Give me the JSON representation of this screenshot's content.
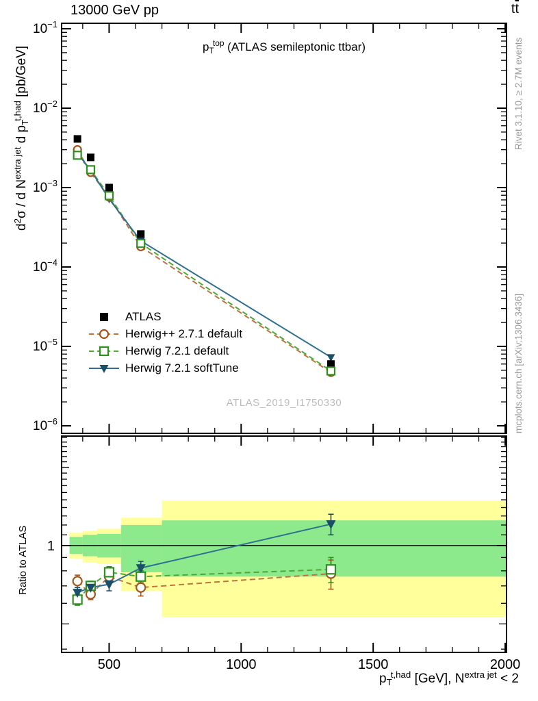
{
  "header": {
    "title_left": "13000 GeV pp",
    "title_right_parts": [
      {
        "t": "t"
      },
      {
        "t": "t",
        "s": "ov"
      }
    ]
  },
  "side_notes": {
    "rivet": "Rivet 3.1.10, ≥ 2.7M events",
    "mcplots": "mcplots.cern.ch [arXiv:1306.3436]"
  },
  "watermark": "ATLAS_2019_I1750330",
  "annotation_parts": [
    {
      "t": "p"
    },
    {
      "t": "T",
      "s": "sub"
    },
    {
      "t": "top",
      "s": "sup"
    },
    {
      "t": " (ATLAS semileptonic ttbar)"
    }
  ],
  "axis_labels": {
    "x_parts": [
      {
        "t": "p"
      },
      {
        "t": "T",
        "s": "sub"
      },
      {
        "t": "t,had",
        "s": "sup"
      },
      {
        "t": " [GeV], N"
      },
      {
        "t": "extra jet",
        "s": "sup"
      },
      {
        "t": " < 2"
      }
    ],
    "y_main_parts": [
      {
        "t": "d"
      },
      {
        "t": "2",
        "s": "sup"
      },
      {
        "t": "σ / d N"
      },
      {
        "t": "extra jet",
        "s": "sup"
      },
      {
        "t": " d p"
      },
      {
        "t": "T",
        "s": "sub"
      },
      {
        "t": "t,had",
        "s": "sup"
      },
      {
        "t": " [pb/GeV]"
      }
    ],
    "y_ratio": "Ratio to ATLAS"
  },
  "chart_data": {
    "type": "line",
    "title": "p_T^top (ATLAS semileptonic ttbar)",
    "xlabel": "p_T^{t,had} [GeV], N^{extra jet} < 2",
    "ylabel": "d^2(sigma) / d N^{extra jet} d p_T^{t,had} [pb/GeV]",
    "ylabel_ratio": "Ratio to ATLAS",
    "x_range": [
      320,
      2005
    ],
    "x_ticks": [
      500,
      1000,
      1500,
      2000
    ],
    "x_minor_step": 100,
    "y_main_scale": "log",
    "y_main_decades": [
      -1,
      -2,
      -3,
      -4,
      -5,
      -6
    ],
    "y_main_range": [
      7.9e-07,
      0.117
    ],
    "y_ratio_scale": "log",
    "y_ratio_range": [
      0.389,
      2.63
    ],
    "y_ratio_tick_label": "1",
    "ratio_reference": 1,
    "x": [
      380,
      430,
      500,
      620,
      1340
    ],
    "series": [
      {
        "name": "ATLAS",
        "role": "data",
        "marker": "square-filled",
        "line": "none",
        "marker_color": "#000000",
        "line_color": "#000000",
        "y": [
          0.0041,
          0.0024,
          0.001,
          0.00026,
          6e-06
        ]
      },
      {
        "name": "Herwig++ 2.7.1 default",
        "role": "mc",
        "marker": "circle-open",
        "line": "dashed",
        "marker_color": "#a4551c",
        "line_color": "#bd7440",
        "y": [
          0.003,
          0.00155,
          0.00076,
          0.00018,
          4.7e-06
        ],
        "ratio": [
          0.73,
          0.65,
          0.76,
          0.69,
          0.78
        ],
        "ratio_err": [
          0.04,
          0.03,
          0.04,
          0.05,
          0.1
        ]
      },
      {
        "name": "Herwig 7.2.1 default",
        "role": "mc",
        "marker": "square-open",
        "line": "dashed",
        "marker_color": "#2f8f1f",
        "line_color": "#4ea832",
        "y": [
          0.00255,
          0.00168,
          0.00079,
          0.000198,
          4.9e-06
        ],
        "ratio": [
          0.62,
          0.7,
          0.79,
          0.76,
          0.81
        ],
        "ratio_err": [
          0.03,
          0.03,
          0.04,
          0.04,
          0.09
        ]
      },
      {
        "name": "Herwig 7.2.1 softTune",
        "role": "mc",
        "marker": "triangle-down-filled",
        "line": "solid",
        "marker_color": "#1b4e67",
        "line_color": "#2e7092",
        "y": [
          0.0027,
          0.00166,
          0.00072,
          0.000213,
          7.3e-06
        ],
        "ratio": [
          0.66,
          0.69,
          0.71,
          0.82,
          1.21
        ],
        "ratio_err": [
          0.03,
          0.03,
          0.04,
          0.05,
          0.11
        ]
      }
    ],
    "ratio_bands": {
      "bins": [
        [
          350,
          400
        ],
        [
          400,
          455
        ],
        [
          455,
          545
        ],
        [
          545,
          700
        ],
        [
          700,
          2005
        ]
      ],
      "yellow": [
        [
          0.89,
          1.12
        ],
        [
          0.86,
          1.14
        ],
        [
          0.85,
          1.16
        ],
        [
          0.67,
          1.28
        ],
        [
          0.53,
          1.49
        ]
      ],
      "green": [
        [
          0.93,
          1.08
        ],
        [
          0.91,
          1.1
        ],
        [
          0.9,
          1.11
        ],
        [
          0.79,
          1.2
        ],
        [
          0.76,
          1.25
        ]
      ]
    },
    "colors": {
      "band_yellow": "#ffff9c",
      "band_green": "#8ce98c",
      "reference_line": "#000000"
    },
    "legend_position": "middle-left",
    "grid": false
  }
}
